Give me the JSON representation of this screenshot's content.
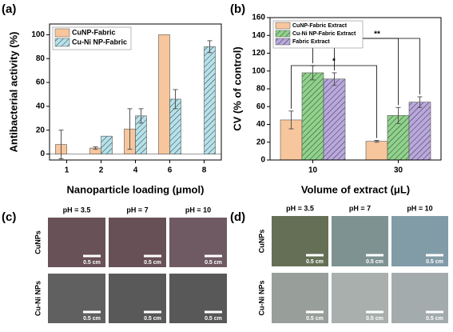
{
  "chart_data": [
    {
      "type": "bar",
      "panel": "(a)",
      "xlabel": "Nanoparticle loading (μmol)",
      "ylabel": "Antibacterial activity (%)",
      "categories": [
        "1",
        "2",
        "4",
        "6",
        "8"
      ],
      "series": [
        {
          "name": "CuNP-Fabric",
          "color": "#f8c69c",
          "hatch": false,
          "values": [
            8,
            5,
            21,
            100,
            null
          ],
          "errors": [
            12,
            1,
            17,
            null,
            null
          ]
        },
        {
          "name": "Cu-Ni NP-Fabric",
          "color": "#b5e2ea",
          "hatch": true,
          "values": [
            null,
            15,
            32,
            46,
            90
          ],
          "errors": [
            null,
            null,
            6,
            8,
            5
          ]
        }
      ],
      "ylim": [
        -5,
        109
      ],
      "yticks": [
        0,
        20,
        40,
        60,
        80,
        100
      ],
      "legend": "upper-left"
    },
    {
      "type": "bar",
      "panel": "(b)",
      "xlabel": "Volume of extract (μL)",
      "ylabel": "CV (% of control)",
      "categories": [
        "10",
        "30"
      ],
      "series": [
        {
          "name": "CuNP-Fabric Extract",
          "color": "#f8c69c",
          "hatch": false,
          "values": [
            45,
            21
          ],
          "errors": [
            10,
            1
          ]
        },
        {
          "name": "Cu-Ni NP-Fabric Extract",
          "color": "#8fd38b",
          "hatch": true,
          "values": [
            98,
            50
          ],
          "errors": [
            8,
            9
          ]
        },
        {
          "name": "Fabric Extract",
          "color": "#b9a8de",
          "hatch": true,
          "values": [
            91,
            65
          ],
          "errors": [
            7,
            6
          ]
        }
      ],
      "annotations": [
        "*",
        "***",
        "**"
      ],
      "ylim": [
        0,
        160
      ],
      "yticks": [
        0,
        20,
        40,
        60,
        80,
        100,
        120,
        140,
        160
      ],
      "legend": "upper-left"
    }
  ],
  "photo_panels": [
    {
      "label": "(c)",
      "columns": [
        "pH = 3.5",
        "pH = 7",
        "pH = 10"
      ],
      "rows": [
        "CuNPs",
        "Cu-Ni NPs"
      ],
      "scale_bar": "0.5 cm",
      "cell_colors": [
        [
          "#6f575d",
          "#735b61",
          "#76606a"
        ],
        [
          "#6b6b6b",
          "#5f5f5f",
          "#626262"
        ]
      ]
    },
    {
      "label": "(d)",
      "columns": [
        "pH = 3.5",
        "pH = 7",
        "pH = 10"
      ],
      "rows": [
        "CuNPs",
        "Cu-Ni NPs"
      ],
      "scale_bar": "0.5 cm",
      "cell_colors": [
        [
          "#6c765c",
          "#8da3a3",
          "#8ba6b2"
        ],
        [
          "#aab0ac",
          "#b3bab8",
          "#b6bfc0"
        ]
      ]
    }
  ]
}
